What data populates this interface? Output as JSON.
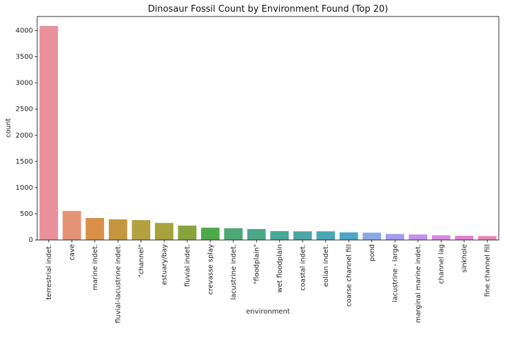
{
  "chart_data": {
    "type": "bar",
    "title": "Dinosaur Fossil Count by Environment Found (Top 20)",
    "xlabel": "environment",
    "ylabel": "count",
    "ylim": [
      0,
      4270
    ],
    "yticks": [
      "0",
      "500",
      "1000",
      "1500",
      "2000",
      "2500",
      "3000",
      "3500",
      "4000"
    ],
    "grid": false,
    "categories": [
      "terrestrial indet.",
      "cave",
      "marine indet.",
      "fluvial-lacustrine indet.",
      "\"channel\"",
      "estuary/bay",
      "fluvial indet.",
      "crevasse splay",
      "lacustrine indet.",
      "\"floodplain\"",
      "wet floodplain",
      "coastal indet.",
      "eolian indet.",
      "coarse channel fill",
      "pond",
      "lacustrine - large",
      "marginal marine indet.",
      "channel lag",
      "sinkhole",
      "fine channel fill"
    ],
    "values": [
      4090,
      555,
      420,
      395,
      380,
      325,
      275,
      235,
      225,
      210,
      170,
      165,
      165,
      145,
      140,
      115,
      105,
      90,
      80,
      75
    ],
    "colors": [
      "#e8909c",
      "#e59377",
      "#d98f47",
      "#c4963f",
      "#b3a040",
      "#a6a23e",
      "#89a43f",
      "#4ea94b",
      "#4ea875",
      "#4ba98a",
      "#4aa79a",
      "#4ca5a6",
      "#4aa6b3",
      "#4ba6c8",
      "#8aa8e4",
      "#a29ded",
      "#c291eb",
      "#d986e6",
      "#e27fcd",
      "#e788b6"
    ]
  }
}
